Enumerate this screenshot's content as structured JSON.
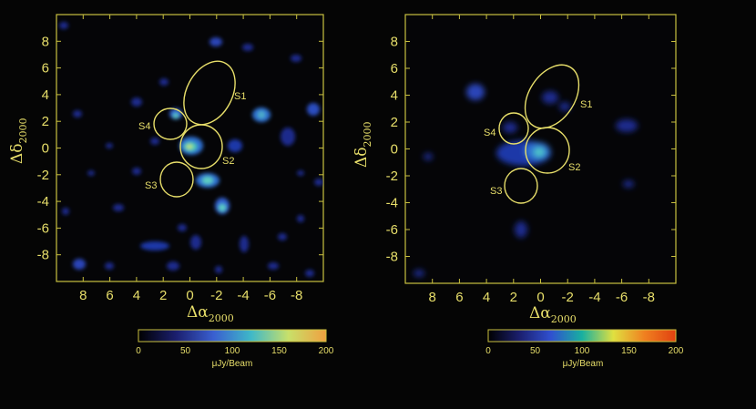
{
  "colors": {
    "axis": "#c9c040",
    "label": "#e8df6a",
    "background": "#050505",
    "blob_low": "#1a2a8a",
    "blob_mid": "#2f6fd0",
    "blob_high": "#5fd0c0",
    "blob_peak": "#d8e060"
  },
  "panels": [
    {
      "id": "left",
      "xlabel": "Δα",
      "xlabel_sub": "2000",
      "ylabel": "Δδ",
      "ylabel_sub": "2000",
      "x_ticks": [
        "8",
        "6",
        "4",
        "2",
        "0",
        "-2",
        "-4",
        "-6",
        "-8"
      ],
      "y_ticks": [
        "8",
        "6",
        "4",
        "2",
        "0",
        "-2",
        "-4",
        "-6",
        "-8"
      ],
      "sources": [
        "S1",
        "S2",
        "S3",
        "S4"
      ],
      "colorbar": {
        "ticks": [
          "0",
          "50",
          "100",
          "150",
          "200"
        ],
        "unit": "μJy/Beam",
        "range": [
          0,
          200
        ],
        "stops": [
          "#000000",
          "#1b1f6e",
          "#3a5fd0",
          "#3fb8c8",
          "#c8e06a",
          "#f0a040"
        ]
      }
    },
    {
      "id": "right",
      "xlabel": "Δα",
      "xlabel_sub": "2000",
      "ylabel": "Δδ",
      "ylabel_sub": "2000",
      "x_ticks": [
        "8",
        "6",
        "4",
        "2",
        "0",
        "-2",
        "-4",
        "-6",
        "-8"
      ],
      "y_ticks": [
        "8",
        "6",
        "4",
        "2",
        "0",
        "-2",
        "-4",
        "-6",
        "-8"
      ],
      "sources": [
        "S1",
        "S2",
        "S3",
        "S4"
      ],
      "colorbar": {
        "ticks": [
          "0",
          "50",
          "100",
          "150",
          "200"
        ],
        "unit": "μJy/Beam",
        "range": [
          0,
          200
        ],
        "stops": [
          "#000000",
          "#1b1f6e",
          "#3050d0",
          "#18b0a0",
          "#e0e040",
          "#f08020",
          "#e04010"
        ]
      }
    }
  ]
}
